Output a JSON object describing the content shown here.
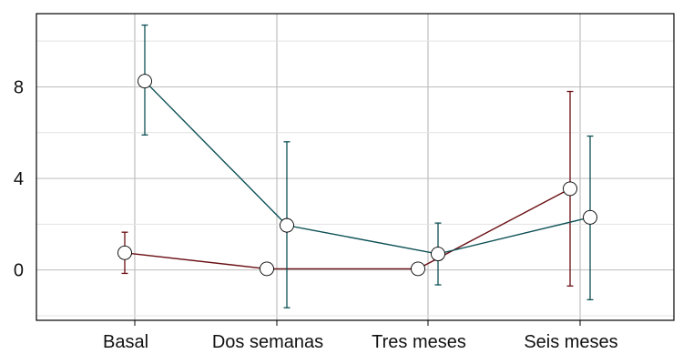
{
  "chart_data": {
    "type": "line",
    "categories": [
      "Basal",
      "Dos semanas",
      "Tres meses",
      "Seis meses"
    ],
    "y_ticks": [
      0,
      4,
      8
    ],
    "ylim": [
      -2.2,
      11.2
    ],
    "grid": true,
    "series": [
      {
        "color": "#6b0f14",
        "points": [
          {
            "category": "Basal",
            "y": 0.75,
            "low": -0.15,
            "high": 1.65
          },
          {
            "category": "Dos semanas",
            "y": 0.05,
            "low": null,
            "high": null
          },
          {
            "category": "Tres meses",
            "y": 0.05,
            "low": null,
            "high": null
          },
          {
            "category": "Seis meses",
            "y": 3.55,
            "low": -0.7,
            "high": 7.8
          }
        ]
      },
      {
        "color": "#0d5055",
        "points": [
          {
            "category": "Basal",
            "y": 8.25,
            "low": 5.9,
            "high": 10.7
          },
          {
            "category": "Dos semanas",
            "y": 1.95,
            "low": -1.65,
            "high": 5.6
          },
          {
            "category": "Tres meses",
            "y": 0.7,
            "low": -0.65,
            "high": 2.05
          },
          {
            "category": "Seis meses",
            "y": 2.3,
            "low": -1.3,
            "high": 5.85
          }
        ]
      }
    ]
  }
}
